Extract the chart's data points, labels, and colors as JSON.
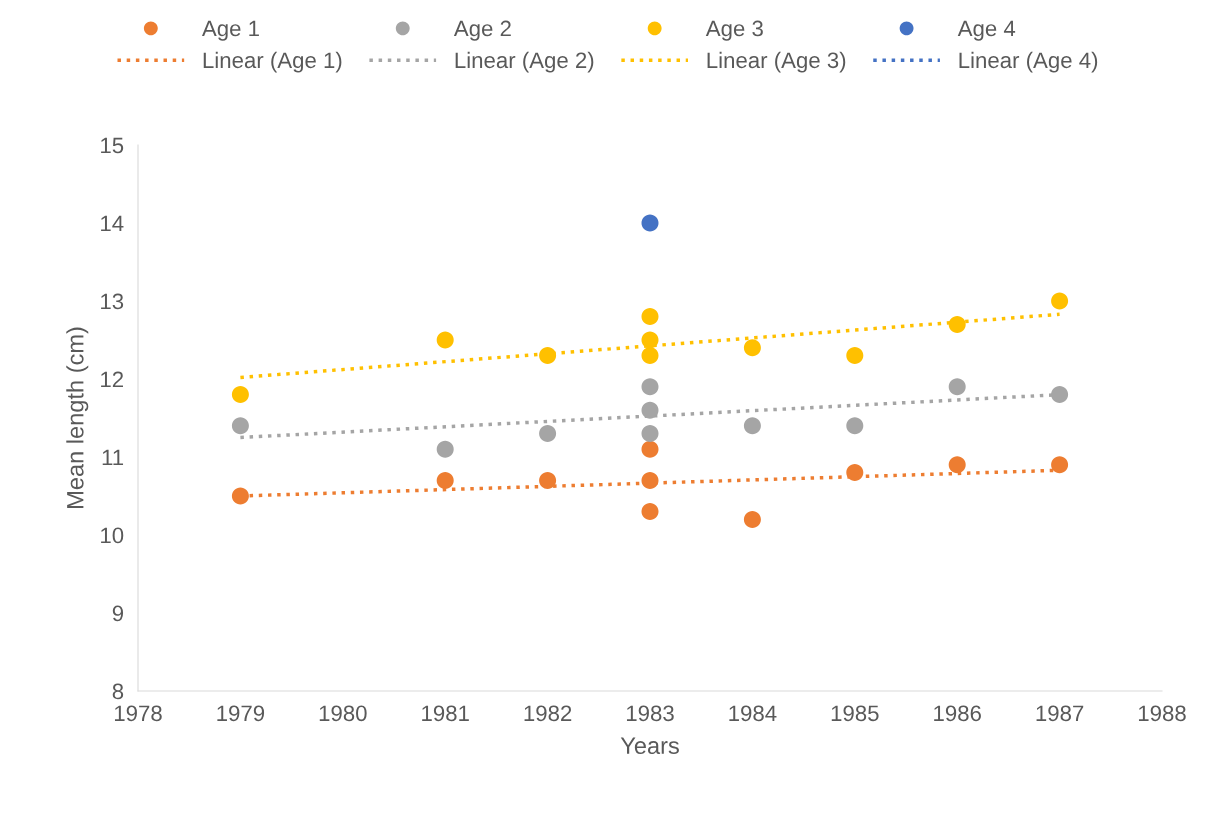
{
  "chart_data": {
    "type": "scatter",
    "xlabel": "Years",
    "ylabel": "Mean length (cm)",
    "xlim": [
      1978,
      1988
    ],
    "xticks": [
      1978,
      1979,
      1980,
      1981,
      1982,
      1983,
      1984,
      1985,
      1986,
      1987,
      1988
    ],
    "ylim": [
      8,
      15
    ],
    "yticks": [
      8,
      9,
      10,
      11,
      12,
      13,
      14,
      15
    ],
    "grid": false,
    "legend": "top",
    "marker": "circle",
    "series": [
      {
        "name": "Age 1",
        "color": "#ed7d31",
        "x": [
          1979,
          1981,
          1982,
          1983,
          1983,
          1983,
          1984,
          1985,
          1986,
          1987
        ],
        "values": [
          10.5,
          10.7,
          10.7,
          11.1,
          10.7,
          10.3,
          10.2,
          10.8,
          10.9,
          10.9
        ]
      },
      {
        "name": "Linear (Age 1)",
        "type": "line",
        "line_style": "dotted",
        "marker": "none",
        "color": "#ed7d31",
        "x": [
          1979,
          1987
        ],
        "values": [
          10.5,
          10.83
        ]
      },
      {
        "name": "Age 2",
        "color": "#a5a5a5",
        "x": [
          1979,
          1981,
          1982,
          1983,
          1983,
          1983,
          1984,
          1985,
          1986,
          1987
        ],
        "values": [
          11.4,
          11.1,
          11.3,
          11.9,
          11.6,
          11.3,
          11.4,
          11.4,
          11.9,
          11.8
        ]
      },
      {
        "name": "Linear (Age 2)",
        "type": "line",
        "line_style": "dotted",
        "marker": "none",
        "color": "#a5a5a5",
        "x": [
          1979,
          1987
        ],
        "values": [
          11.25,
          11.8
        ]
      },
      {
        "name": "Age 3",
        "color": "#ffc000",
        "x": [
          1979,
          1981,
          1982,
          1983,
          1983,
          1983,
          1984,
          1985,
          1986,
          1987
        ],
        "values": [
          11.8,
          12.5,
          12.3,
          12.8,
          12.5,
          12.3,
          12.4,
          12.3,
          12.7,
          13.0
        ]
      },
      {
        "name": "Linear (Age 3)",
        "type": "line",
        "line_style": "dotted",
        "marker": "none",
        "color": "#ffc000",
        "x": [
          1979,
          1987
        ],
        "values": [
          12.02,
          12.83
        ]
      },
      {
        "name": "Age 4",
        "color": "#4472c4",
        "x": [
          1983
        ],
        "values": [
          14
        ]
      },
      {
        "name": "Linear (Age 4)",
        "type": "line",
        "line_style": "dotted",
        "marker": "none",
        "color": "#4472c4"
      }
    ]
  }
}
